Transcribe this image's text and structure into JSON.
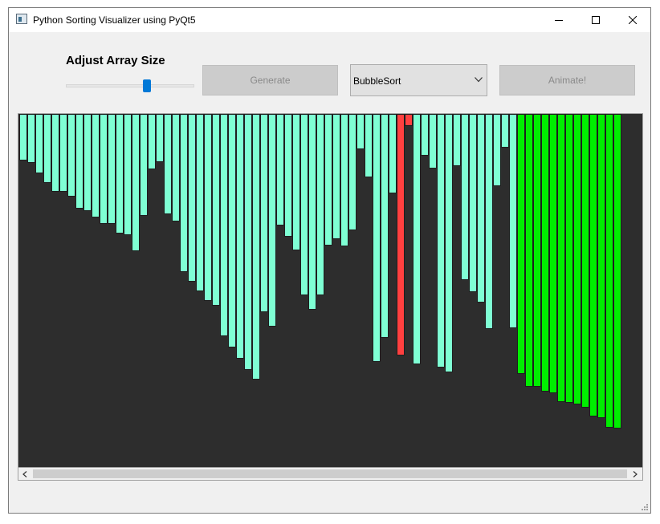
{
  "window": {
    "title": "Python Sorting Visualizer using PyQt5",
    "icon": "app-window-icon"
  },
  "controls": {
    "size_label": "Adjust Array Size",
    "slider_value_fraction": 0.63,
    "generate_label": "Generate",
    "algorithm_selected": "BubbleSort",
    "animate_label": "Animate!"
  },
  "colors": {
    "unsorted": "#7fffd4",
    "comparing": "#ff4040",
    "sorted": "#00ee00",
    "background": "#2d2d2d"
  },
  "bars": {
    "max_value": 440,
    "values": [
      58,
      61,
      74,
      86,
      97,
      97,
      103,
      118,
      121,
      129,
      137,
      137,
      149,
      151,
      171,
      127,
      69,
      60,
      125,
      134,
      197,
      209,
      221,
      233,
      239,
      277,
      291,
      305,
      319,
      331,
      247,
      265,
      139,
      153,
      170,
      226,
      244,
      226,
      164,
      156,
      165,
      145,
      44,
      79,
      309,
      279,
      99,
      301,
      15,
      312,
      52,
      68,
      316,
      322,
      65,
      207,
      222,
      235,
      268,
      90,
      42,
      267,
      324,
      340,
      340,
      346,
      348,
      359,
      360,
      362,
      366,
      377,
      379,
      391,
      392
    ],
    "comparing_indices": [
      47,
      48
    ],
    "sorted_from_index": 62
  }
}
